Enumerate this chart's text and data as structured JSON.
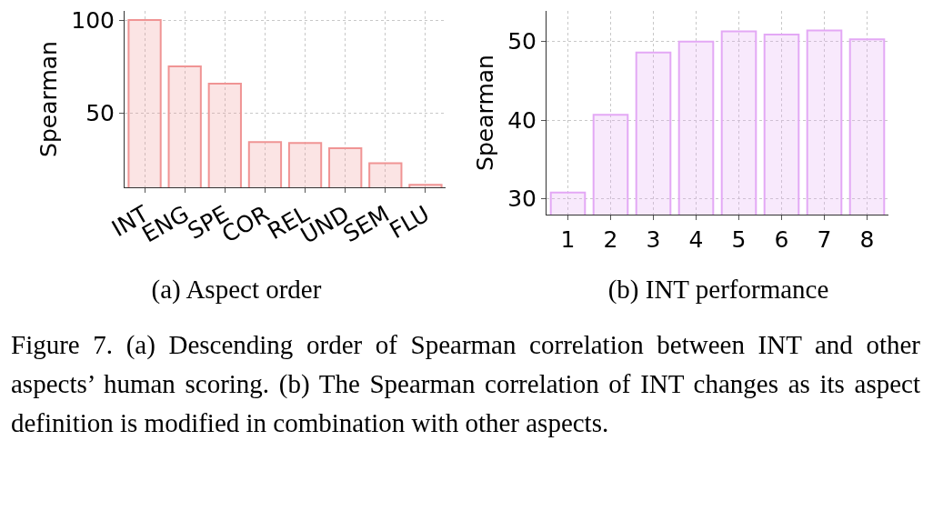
{
  "chart_data": [
    {
      "type": "bar",
      "title": "(a) Aspect order",
      "ylabel": "Spearman",
      "categories": [
        "INT",
        "ENG",
        "SPE",
        "COR",
        "REL",
        "UND",
        "SEM",
        "FLU"
      ],
      "series": [
        {
          "color": "#f09494",
          "values": [
            100,
            75.1,
            65.8,
            34.4,
            33.9,
            31.1,
            23.0,
            11.4
          ]
        }
      ],
      "ylim": [
        10.1,
        104.9
      ],
      "yticks": [
        50,
        100
      ],
      "grid": true
    },
    {
      "type": "bar",
      "title": "(b) INT performance",
      "ylabel": "Spearman",
      "categories": [
        "1",
        "2",
        "3",
        "4",
        "5",
        "6",
        "7",
        "8"
      ],
      "series": [
        {
          "color": "#e3a8f5",
          "values": [
            30.8,
            40.7,
            48.6,
            50.0,
            51.3,
            50.9,
            51.4,
            50.3
          ]
        }
      ],
      "ylim": [
        28.0,
        53.9
      ],
      "yticks": [
        30,
        40,
        50
      ],
      "grid": true,
      "annotations": [
        "Figure 7. (a) Descending order of Spearman correlation between INT and other aspects’ human scoring. (b) The Spearman correlation of INT changes as its aspect definition is modified in combination with other aspects."
      ]
    }
  ]
}
